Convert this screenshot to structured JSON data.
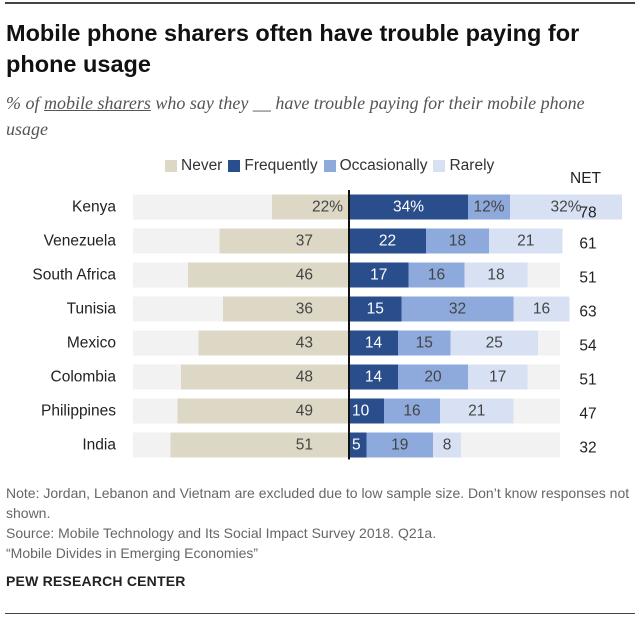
{
  "title": "Mobile phone sharers often have trouble paying for phone usage",
  "subtitle_prefix": "% of ",
  "subtitle_underlined": "mobile sharers",
  "subtitle_suffix": " who say they __ have trouble paying for their mobile phone usage",
  "net_label": "NET",
  "note": "Note: Jordan, Lebanon and Vietnam are excluded due to low sample size. Don’t know responses not shown.",
  "source": "Source: Mobile Technology and Its Social Impact Survey 2018. Q21a.",
  "report": "“Mobile Divides in Emerging Economies”",
  "brand": "PEW RESEARCH CENTER",
  "colors": {
    "never": "#ddd8c6",
    "frequently": "#2a4e8c",
    "occasionally": "#8ea9dc",
    "rarely": "#d8e1f3",
    "axis": "#111111",
    "gridband": "#f2f2f2"
  },
  "chart_data": {
    "type": "bar",
    "orientation": "horizontal-diverging",
    "stacked": true,
    "categories": [
      "Kenya",
      "Venezuela",
      "South Africa",
      "Tunisia",
      "Mexico",
      "Colombia",
      "Philippines",
      "India"
    ],
    "series": [
      {
        "name": "Never",
        "key": "never",
        "values": [
          22,
          37,
          46,
          36,
          43,
          48,
          49,
          51
        ],
        "side": "left"
      },
      {
        "name": "Frequently",
        "key": "frequently",
        "values": [
          34,
          22,
          17,
          15,
          14,
          14,
          10,
          5
        ],
        "side": "right"
      },
      {
        "name": "Occasionally",
        "key": "occasionally",
        "values": [
          12,
          18,
          16,
          32,
          15,
          20,
          16,
          19
        ],
        "side": "right"
      },
      {
        "name": "Rarely",
        "key": "rarely",
        "values": [
          32,
          21,
          18,
          16,
          25,
          17,
          21,
          8
        ],
        "side": "right"
      }
    ],
    "net": [
      78,
      61,
      51,
      63,
      54,
      51,
      47,
      32
    ],
    "first_row_percent_labels": true,
    "legend_position": "top"
  }
}
